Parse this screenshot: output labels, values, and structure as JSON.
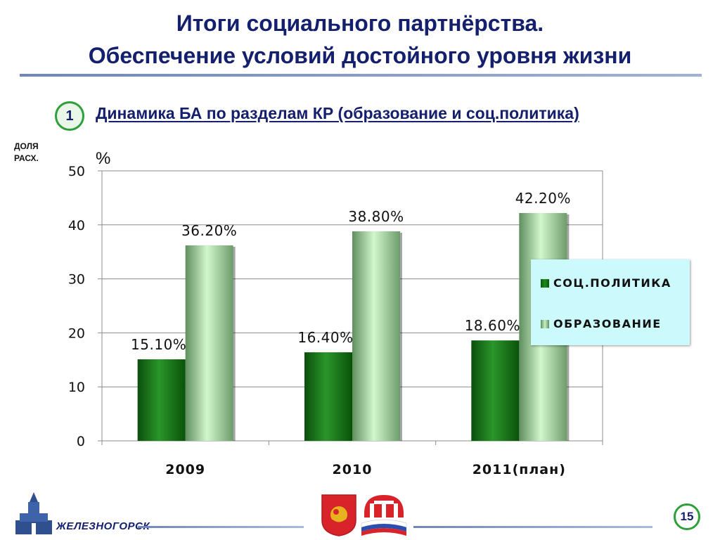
{
  "header": {
    "title_line1": "Итоги социального партнёрства.",
    "title_line2": "Обеспечение условий достойного уровня жизни"
  },
  "section": {
    "number": "1",
    "title": "Динамика БА по разделам КР (образование и  соц.политика)"
  },
  "share_label_line1": "ДОЛЯ",
  "share_label_line2": "РАСХ.",
  "footer": {
    "city": "ЖЕЛЕЗНОГОРСК",
    "page_number": "15"
  },
  "colors": {
    "title": "#14206e",
    "badge_border": "#2ea039",
    "legend_background": "#ccf9fc",
    "series_soc_politika": "#1a7a1a",
    "series_obrazovanie": "#b8ecb4"
  },
  "icons": [
    "kremlin-tower-logo",
    "coat-of-arms-logo",
    "pension-fund-logo"
  ],
  "chart_data": {
    "type": "bar",
    "categories": [
      "2009",
      "2010",
      "2011(план)"
    ],
    "series": [
      {
        "name": "СОЦ.ПОЛИТИКА",
        "values": [
          15.1,
          16.4,
          18.6
        ],
        "labels": [
          "15.10%",
          "16.40%",
          "18.60%"
        ]
      },
      {
        "name": "ОБРАЗОВАНИЕ",
        "values": [
          36.2,
          38.8,
          42.2
        ],
        "labels": [
          "36.20%",
          "38.80%",
          "42.20%"
        ]
      }
    ],
    "ylabel": "%",
    "ylim": [
      0,
      50
    ],
    "yticks": [
      0,
      10,
      20,
      30,
      40,
      50
    ],
    "grid": true,
    "legend_position": "right"
  }
}
